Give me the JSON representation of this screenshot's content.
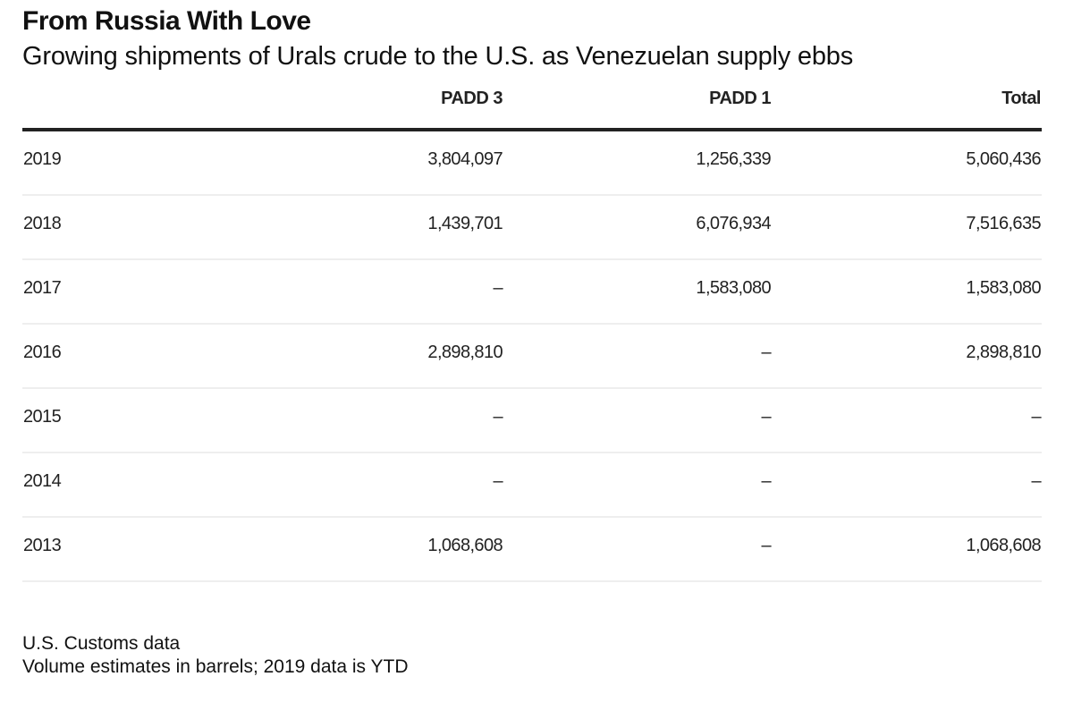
{
  "header": {
    "title": "From Russia With Love",
    "subtitle": "Growing shipments of Urals crude to the U.S. as Venezuelan supply ebbs"
  },
  "chart_data": {
    "type": "table",
    "title": "From Russia With Love",
    "subtitle": "Growing shipments of Urals crude to the U.S. as Venezuelan supply ebbs",
    "columns": [
      "",
      "PADD 3",
      "PADD 1",
      "Total"
    ],
    "rows": [
      [
        "2019",
        "3,804,097",
        "1,256,339",
        "5,060,436"
      ],
      [
        "2018",
        "1,439,701",
        "6,076,934",
        "7,516,635"
      ],
      [
        "2017",
        "–",
        "1,583,080",
        "1,583,080"
      ],
      [
        "2016",
        "2,898,810",
        "–",
        "2,898,810"
      ],
      [
        "2015",
        "–",
        "–",
        "–"
      ],
      [
        "2014",
        "–",
        "–",
        "–"
      ],
      [
        "2013",
        "1,068,608",
        "–",
        "1,068,608"
      ]
    ],
    "values": [
      {
        "year": 2019,
        "padd3": 3804097,
        "padd1": 1256339,
        "total": 5060436
      },
      {
        "year": 2018,
        "padd3": 1439701,
        "padd1": 6076934,
        "total": 7516635
      },
      {
        "year": 2017,
        "padd3": null,
        "padd1": 1583080,
        "total": 1583080
      },
      {
        "year": 2016,
        "padd3": 2898810,
        "padd1": null,
        "total": 2898810
      },
      {
        "year": 2015,
        "padd3": null,
        "padd1": null,
        "total": null
      },
      {
        "year": 2014,
        "padd3": null,
        "padd1": null,
        "total": null
      },
      {
        "year": 2013,
        "padd3": 1068608,
        "padd1": null,
        "total": 1068608
      }
    ],
    "source": "U.S. Customs data",
    "note": "Volume estimates in barrels; 2019 data is YTD"
  },
  "footer": {
    "source": "U.S. Customs data",
    "note": "Volume estimates in barrels; 2019 data is YTD"
  }
}
